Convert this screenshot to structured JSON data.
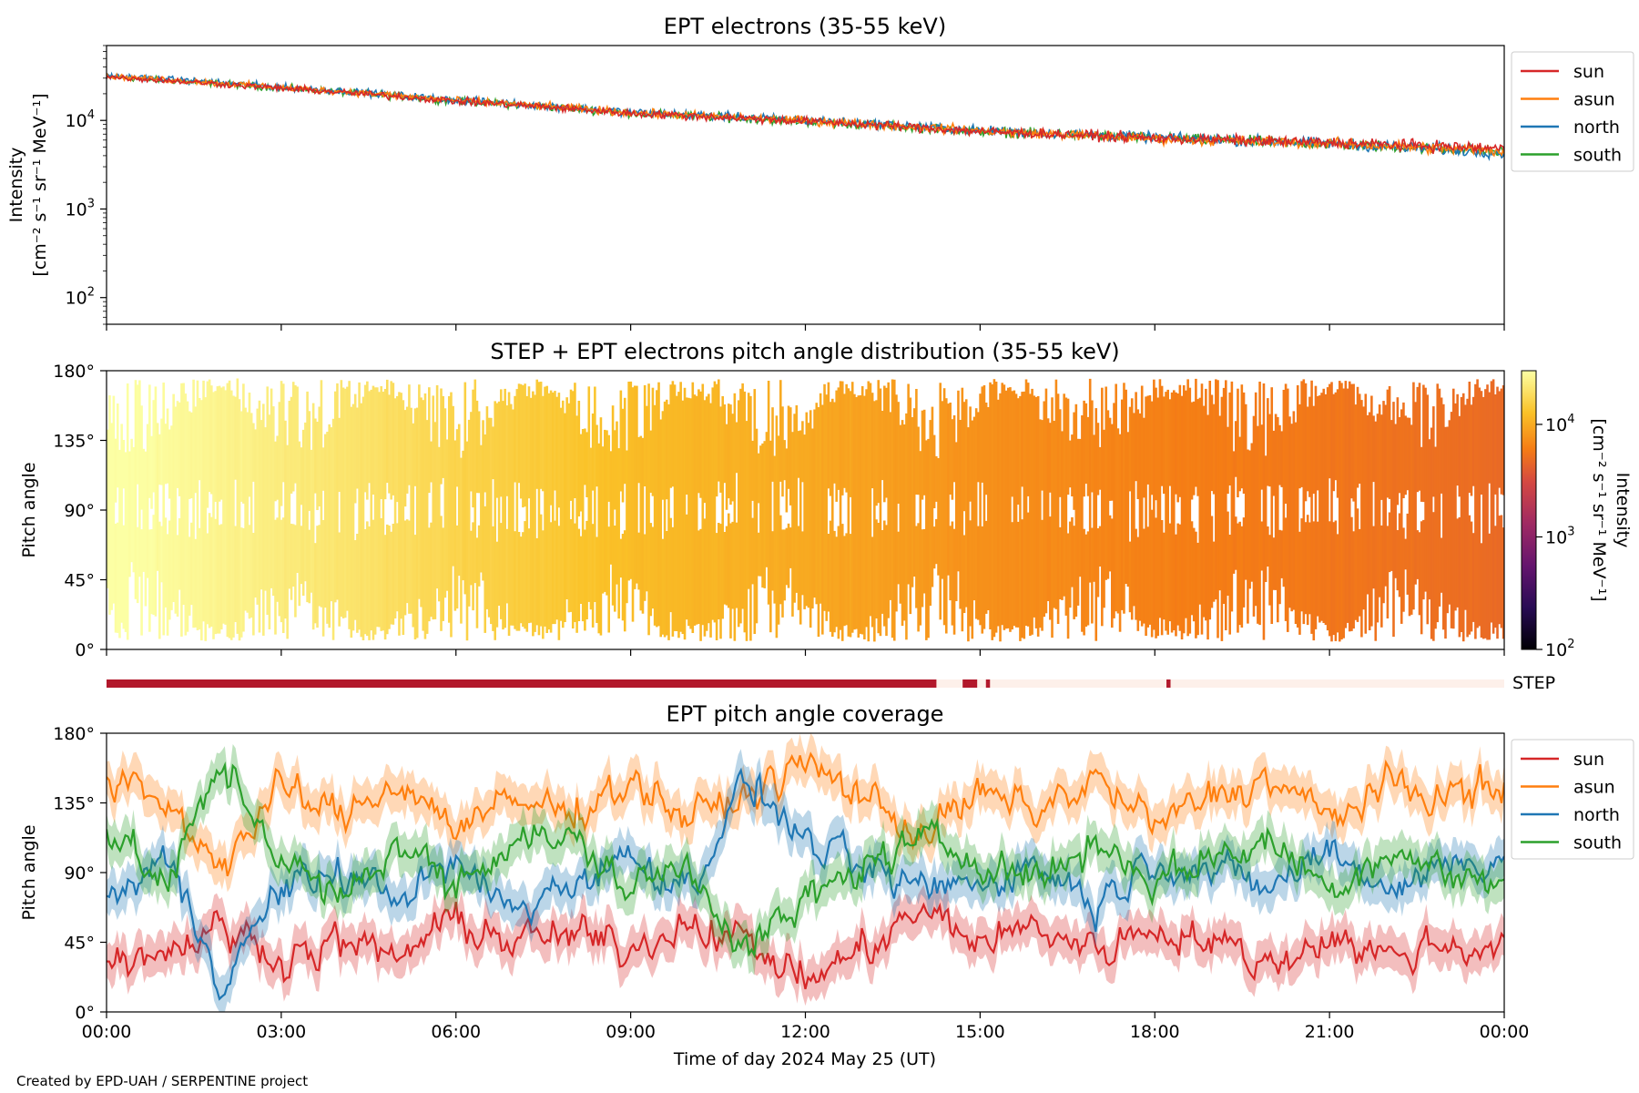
{
  "credit": "Created by EPD-UAH / SERPENTINE project",
  "xlabel": "Time of day 2024 May 25 (UT)",
  "x_ticks": [
    "00:00",
    "03:00",
    "06:00",
    "09:00",
    "12:00",
    "15:00",
    "18:00",
    "21:00",
    "00:00"
  ],
  "panel1": {
    "title": "EPT electrons (35-55 keV)",
    "ylabel_line1": "Intensity",
    "ylabel_line2": "[cm⁻² s⁻¹ sr⁻¹ MeV⁻¹]",
    "y_ticks": [
      {
        "base": "10",
        "exp": "2"
      },
      {
        "base": "10",
        "exp": "3"
      },
      {
        "base": "10",
        "exp": "4"
      }
    ]
  },
  "panel2": {
    "title": "STEP + EPT electrons pitch angle distribution (35-55 keV)",
    "ylabel": "Pitch angle",
    "y_ticks": [
      "0°",
      "45°",
      "90°",
      "135°",
      "180°"
    ],
    "colorbar_label_line1": "Intensity",
    "colorbar_label_line2": "[cm⁻² s⁻¹ sr⁻¹ MeV⁻¹]",
    "colorbar_ticks": [
      {
        "base": "10",
        "exp": "2"
      },
      {
        "base": "10",
        "exp": "3"
      },
      {
        "base": "10",
        "exp": "4"
      }
    ]
  },
  "step_bar": {
    "label": "STEP"
  },
  "panel3": {
    "title": "EPT pitch angle coverage",
    "ylabel": "Pitch angle",
    "y_ticks": [
      "0°",
      "45°",
      "90°",
      "135°",
      "180°"
    ]
  },
  "legend": [
    "sun",
    "asun",
    "north",
    "south"
  ],
  "colors": {
    "sun": "#d62728",
    "asun": "#ff7f0e",
    "north": "#1f77b4",
    "south": "#2ca02c",
    "step_on": "#b2182b",
    "step_off": "#fdf0ea"
  },
  "chart_data": [
    {
      "type": "line",
      "title": "EPT electrons (35-55 keV)",
      "xlabel": "",
      "ylabel": "Intensity [cm⁻² s⁻¹ sr⁻¹ MeV⁻¹]",
      "x_unit": "hours since 2024-05-25 00:00 UT",
      "xlim": [
        0,
        24
      ],
      "yscale": "log",
      "ylim": [
        50,
        70000
      ],
      "x": [
        0,
        3,
        6,
        9,
        12,
        15,
        18,
        21,
        24
      ],
      "series": [
        {
          "name": "sun",
          "values": [
            31000,
            23000,
            16500,
            12000,
            9800,
            7500,
            6300,
            5600,
            4800
          ]
        },
        {
          "name": "asun",
          "values": [
            31500,
            23500,
            16800,
            12200,
            9900,
            7600,
            6200,
            5500,
            4500
          ]
        },
        {
          "name": "north",
          "values": [
            32000,
            23800,
            17000,
            12400,
            10100,
            7700,
            6400,
            5500,
            4300
          ]
        },
        {
          "name": "south",
          "values": [
            31000,
            23200,
            16600,
            12100,
            9700,
            7500,
            6300,
            5400,
            4400
          ]
        }
      ],
      "legend": "upper right outside"
    },
    {
      "type": "heatmap",
      "title": "STEP + EPT electrons pitch angle distribution (35-55 keV)",
      "ylabel": "Pitch angle",
      "xlim": [
        0,
        24
      ],
      "ylim": [
        0,
        180
      ],
      "colorscale": "inferno",
      "color_scale_type": "log",
      "color_range": [
        100,
        30000
      ],
      "note": "intensity values follow the panel-1 trend",
      "x": [
        0,
        3,
        6,
        9,
        12,
        15,
        18,
        21,
        24
      ],
      "intensity": [
        31000,
        23000,
        16500,
        12000,
        9800,
        7500,
        6300,
        5600,
        4800
      ]
    },
    {
      "type": "bar",
      "title": "STEP",
      "note": "STEP data availability",
      "segments_on_hours": [
        [
          0,
          14.25
        ],
        [
          14.7,
          14.95
        ],
        [
          15.1,
          15.17
        ],
        [
          18.2,
          18.27
        ]
      ]
    },
    {
      "type": "line",
      "title": "EPT pitch angle coverage",
      "xlabel": "Time of day 2024 May 25 (UT)",
      "ylabel": "Pitch angle",
      "xlim": [
        0,
        24
      ],
      "ylim": [
        0,
        180
      ],
      "x": [
        0,
        1,
        2,
        3,
        4,
        5,
        6,
        7,
        8,
        9,
        10,
        11,
        12,
        13,
        14,
        15,
        16,
        17,
        18,
        19,
        20,
        21,
        22,
        23,
        24
      ],
      "series": [
        {
          "name": "sun",
          "values": [
            35,
            40,
            55,
            35,
            45,
            35,
            60,
            45,
            50,
            40,
            60,
            45,
            20,
            40,
            65,
            45,
            55,
            40,
            55,
            45,
            30,
            50,
            35,
            45,
            40
          ]
        },
        {
          "name": "asun",
          "values": [
            150,
            135,
            95,
            145,
            125,
            150,
            120,
            135,
            130,
            150,
            125,
            140,
            160,
            140,
            115,
            140,
            130,
            150,
            120,
            140,
            150,
            125,
            145,
            140,
            145
          ]
        },
        {
          "name": "north",
          "values": [
            70,
            100,
            20,
            80,
            90,
            75,
            95,
            65,
            85,
            100,
            80,
            150,
            110,
            90,
            80,
            85,
            95,
            70,
            100,
            90,
            80,
            105,
            80,
            95,
            100
          ]
        },
        {
          "name": "south",
          "values": [
            120,
            80,
            160,
            100,
            70,
            110,
            80,
            115,
            110,
            80,
            95,
            40,
            70,
            95,
            110,
            100,
            85,
            110,
            85,
            100,
            110,
            80,
            105,
            90,
            80
          ]
        }
      ],
      "legend": "upper right outside"
    }
  ]
}
